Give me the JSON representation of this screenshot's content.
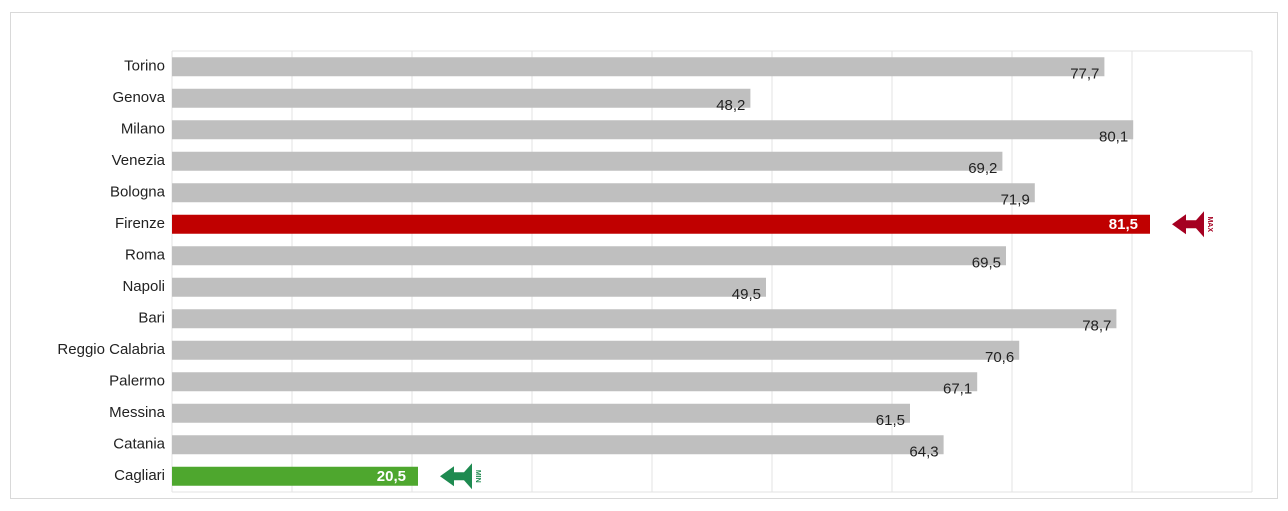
{
  "chart_data": {
    "type": "barh",
    "categories": [
      "Torino",
      "Genova",
      "Milano",
      "Venezia",
      "Bologna",
      "Firenze",
      "Roma",
      "Napoli",
      "Bari",
      "Reggio Calabria",
      "Palermo",
      "Messina",
      "Catania",
      "Cagliari"
    ],
    "values": [
      77.7,
      48.2,
      80.1,
      69.2,
      71.9,
      81.5,
      69.5,
      49.5,
      78.7,
      70.6,
      67.1,
      61.5,
      64.3,
      20.5
    ],
    "value_labels": [
      "77,7",
      "48,2",
      "80,1",
      "69,2",
      "71,9",
      "81,5",
      "69,5",
      "49,5",
      "78,7",
      "70,6",
      "67,1",
      "61,5",
      "64,3",
      "20,5"
    ],
    "color": "#bfbfbf",
    "colors": [
      "#bfbfbf",
      "#bfbfbf",
      "#bfbfbf",
      "#bfbfbf",
      "#bfbfbf",
      "#c00000",
      "#bfbfbf",
      "#bfbfbf",
      "#bfbfbf",
      "#bfbfbf",
      "#bfbfbf",
      "#bfbfbf",
      "#bfbfbf",
      "#4ea72e"
    ],
    "xlim": [
      0,
      90
    ],
    "xticks": [
      0,
      10,
      20,
      30,
      40,
      50,
      60,
      70,
      80,
      90
    ],
    "grid": true,
    "annotations": [
      {
        "text": "MAX",
        "category": "Firenze",
        "color": "#a50021"
      },
      {
        "text": "MIN",
        "category": "Cagliari",
        "color": "#1e8a50"
      }
    ]
  }
}
